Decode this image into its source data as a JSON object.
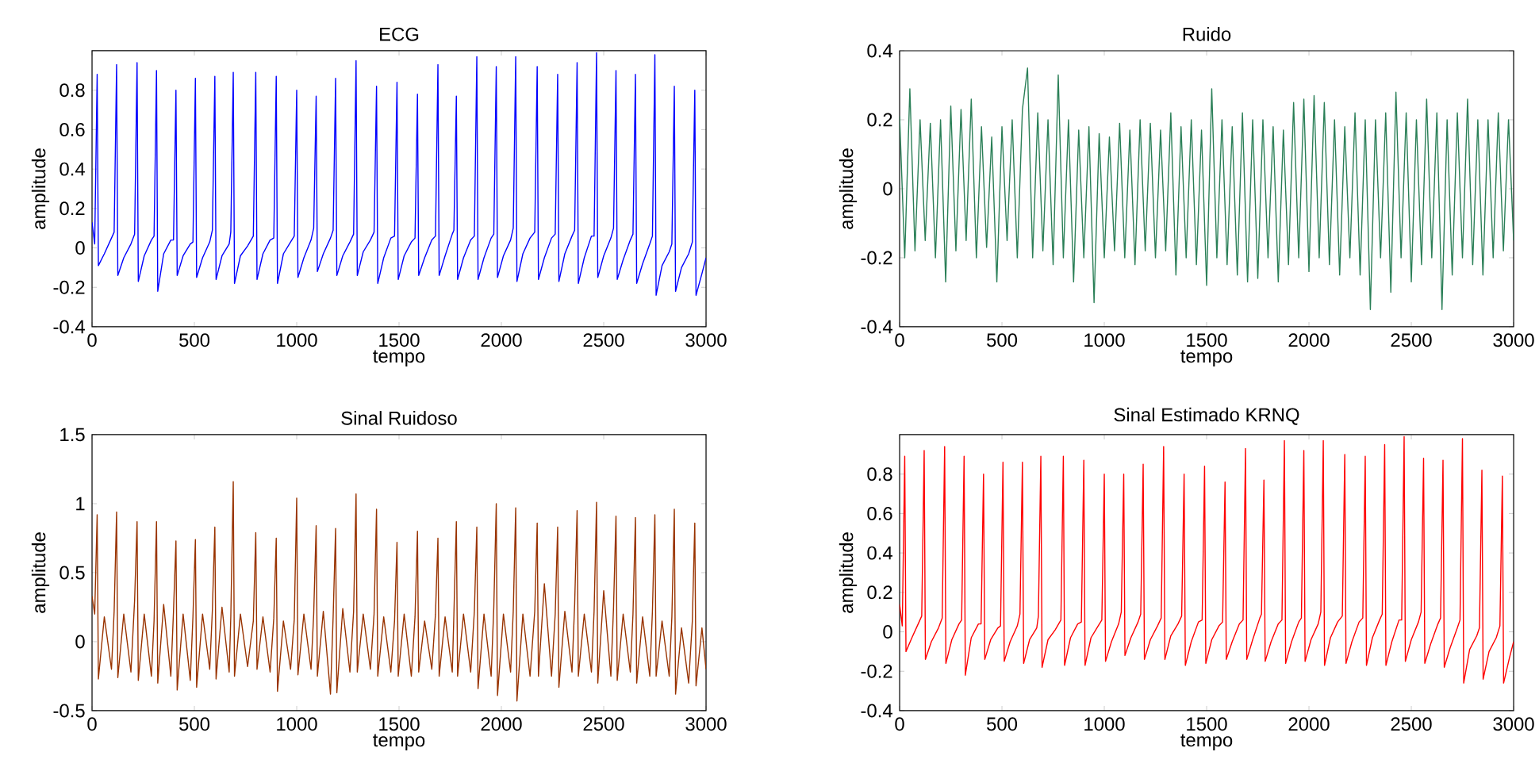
{
  "chart_data": [
    {
      "type": "line",
      "title": "ECG",
      "xlabel": "tempo",
      "ylabel": "amplitude",
      "color": "#0000ff",
      "xlim": [
        0,
        3000
      ],
      "ylim": [
        -0.4,
        1
      ],
      "xticks": [
        0,
        500,
        1000,
        1500,
        2000,
        2500,
        3000
      ],
      "yticks": [
        -0.4,
        -0.2,
        0,
        0.2,
        0.4,
        0.6,
        0.8
      ],
      "x": [
        0,
        13,
        25,
        31,
        60,
        95,
        108,
        120,
        126,
        155,
        190,
        208,
        220,
        226,
        255,
        290,
        303,
        315,
        321,
        350,
        385,
        398,
        410,
        416,
        445,
        480,
        493,
        505,
        511,
        540,
        575,
        588,
        600,
        606,
        635,
        670,
        678,
        690,
        696,
        725,
        760,
        788,
        800,
        806,
        835,
        870,
        888,
        900,
        906,
        935,
        970,
        988,
        1000,
        1006,
        1035,
        1070,
        1083,
        1095,
        1101,
        1130,
        1165,
        1178,
        1190,
        1196,
        1225,
        1260,
        1278,
        1290,
        1296,
        1325,
        1360,
        1378,
        1390,
        1396,
        1425,
        1460,
        1478,
        1490,
        1496,
        1525,
        1560,
        1578,
        1590,
        1596,
        1625,
        1660,
        1678,
        1690,
        1696,
        1725,
        1760,
        1768,
        1780,
        1786,
        1815,
        1850,
        1868,
        1880,
        1886,
        1915,
        1950,
        1963,
        1975,
        1981,
        2010,
        2045,
        2058,
        2070,
        2076,
        2105,
        2140,
        2163,
        2175,
        2181,
        2210,
        2245,
        2263,
        2275,
        2281,
        2310,
        2345,
        2358,
        2370,
        2376,
        2405,
        2440,
        2453,
        2465,
        2471,
        2500,
        2535,
        2548,
        2560,
        2566,
        2595,
        2630,
        2643,
        2655,
        2661,
        2690,
        2725,
        2738,
        2750,
        2756,
        2785,
        2820,
        2833,
        2845,
        2851,
        2880,
        2915,
        2933,
        2945,
        2951,
        2980,
        3000
      ],
      "values": [
        0.13,
        0.02,
        0.88,
        -0.09,
        -0.03,
        0.05,
        0.08,
        0.93,
        -0.14,
        -0.05,
        0.02,
        0.07,
        0.94,
        -0.17,
        -0.04,
        0.04,
        0.06,
        0.9,
        -0.22,
        -0.03,
        0.04,
        0.04,
        0.8,
        -0.14,
        -0.04,
        0.02,
        0.03,
        0.86,
        -0.15,
        -0.05,
        0.03,
        0.09,
        0.87,
        -0.16,
        -0.04,
        0.02,
        0.08,
        0.89,
        -0.18,
        -0.04,
        0.01,
        0.06,
        0.89,
        -0.16,
        -0.03,
        0.04,
        0.05,
        0.87,
        -0.18,
        -0.03,
        0.03,
        0.06,
        0.8,
        -0.15,
        -0.05,
        0.04,
        0.1,
        0.77,
        -0.12,
        -0.03,
        0.05,
        0.09,
        0.86,
        -0.14,
        -0.04,
        0.03,
        0.07,
        0.95,
        -0.14,
        -0.02,
        0.04,
        0.08,
        0.82,
        -0.18,
        -0.05,
        0.05,
        0.06,
        0.84,
        -0.16,
        -0.04,
        0.03,
        0.05,
        0.78,
        -0.14,
        -0.05,
        0.04,
        0.06,
        0.93,
        -0.14,
        -0.04,
        0.07,
        0.09,
        0.77,
        -0.16,
        -0.05,
        0.04,
        0.06,
        0.97,
        -0.16,
        -0.05,
        0.05,
        0.07,
        0.92,
        -0.15,
        -0.04,
        0.04,
        0.1,
        0.97,
        -0.17,
        -0.03,
        0.05,
        0.08,
        0.92,
        -0.16,
        -0.05,
        0.05,
        0.07,
        0.88,
        -0.17,
        -0.03,
        0.06,
        0.09,
        0.94,
        -0.18,
        -0.05,
        0.06,
        0.06,
        0.99,
        -0.15,
        -0.04,
        0.05,
        0.1,
        0.9,
        -0.16,
        -0.06,
        0.04,
        0.07,
        0.88,
        -0.18,
        -0.08,
        0.02,
        0.06,
        0.98,
        -0.24,
        -0.09,
        -0.02,
        0.02,
        0.82,
        -0.22,
        -0.1,
        -0.03,
        0.03,
        0.8,
        -0.24,
        -0.13,
        -0.05
      ]
    },
    {
      "type": "line",
      "title": "Ruido",
      "xlabel": "tempo",
      "ylabel": "amplitude",
      "color": "#2a7f57",
      "xlim": [
        0,
        3000
      ],
      "ylim": [
        -0.4,
        0.4
      ],
      "xticks": [
        0,
        500,
        1000,
        1500,
        2000,
        2500,
        3000
      ],
      "yticks": [
        -0.4,
        -0.2,
        0,
        0.2,
        0.4
      ],
      "x": [
        0,
        25,
        50,
        75,
        100,
        125,
        150,
        175,
        200,
        225,
        250,
        275,
        300,
        325,
        350,
        375,
        400,
        425,
        450,
        475,
        500,
        525,
        550,
        575,
        600,
        625,
        650,
        675,
        700,
        725,
        750,
        775,
        800,
        825,
        850,
        875,
        900,
        925,
        950,
        975,
        1000,
        1025,
        1050,
        1075,
        1100,
        1125,
        1150,
        1175,
        1200,
        1225,
        1250,
        1275,
        1300,
        1325,
        1350,
        1375,
        1400,
        1425,
        1450,
        1475,
        1500,
        1525,
        1550,
        1575,
        1600,
        1625,
        1650,
        1675,
        1700,
        1725,
        1750,
        1775,
        1800,
        1825,
        1850,
        1875,
        1900,
        1925,
        1950,
        1975,
        2000,
        2025,
        2050,
        2075,
        2100,
        2125,
        2150,
        2175,
        2200,
        2225,
        2250,
        2275,
        2300,
        2325,
        2350,
        2375,
        2400,
        2425,
        2450,
        2475,
        2500,
        2525,
        2550,
        2575,
        2600,
        2625,
        2650,
        2675,
        2700,
        2725,
        2750,
        2775,
        2800,
        2825,
        2850,
        2875,
        2900,
        2925,
        2950,
        2975,
        3000
      ],
      "values": [
        0.21,
        -0.2,
        0.29,
        -0.18,
        0.2,
        -0.15,
        0.19,
        -0.2,
        0.2,
        -0.27,
        0.24,
        -0.18,
        0.23,
        -0.15,
        0.26,
        -0.2,
        0.18,
        -0.17,
        0.15,
        -0.27,
        0.18,
        -0.15,
        0.2,
        -0.2,
        0.23,
        0.35,
        -0.2,
        0.22,
        -0.18,
        0.2,
        -0.22,
        0.33,
        -0.2,
        0.2,
        -0.27,
        0.17,
        -0.2,
        0.18,
        -0.33,
        0.16,
        -0.2,
        0.15,
        -0.18,
        0.19,
        -0.2,
        0.17,
        -0.22,
        0.2,
        -0.18,
        0.19,
        -0.2,
        0.17,
        -0.18,
        0.22,
        -0.25,
        0.18,
        -0.2,
        0.2,
        -0.22,
        0.17,
        -0.28,
        0.29,
        -0.2,
        0.2,
        -0.22,
        0.18,
        -0.25,
        0.22,
        -0.27,
        0.2,
        -0.26,
        0.2,
        -0.2,
        0.18,
        -0.27,
        0.17,
        -0.22,
        0.25,
        -0.2,
        0.26,
        -0.24,
        0.27,
        -0.2,
        0.25,
        -0.22,
        0.2,
        -0.25,
        0.18,
        -0.2,
        0.22,
        -0.25,
        0.2,
        -0.35,
        0.2,
        -0.2,
        0.22,
        -0.3,
        0.28,
        -0.2,
        0.22,
        -0.27,
        0.2,
        -0.22,
        0.26,
        -0.2,
        0.22,
        -0.35,
        0.2,
        -0.25,
        0.22,
        -0.2,
        0.26,
        -0.22,
        0.2,
        -0.25,
        0.2,
        -0.2,
        0.22,
        -0.18,
        0.2,
        -0.15
      ]
    },
    {
      "type": "line",
      "title": "Sinal Ruidoso",
      "xlabel": "tempo",
      "ylabel": "amplitude",
      "color": "#993300",
      "xlim": [
        0,
        3000
      ],
      "ylim": [
        -0.5,
        1.5
      ],
      "xticks": [
        0,
        500,
        1000,
        1500,
        2000,
        2500,
        3000
      ],
      "yticks": [
        -0.5,
        0,
        0.5,
        1,
        1.5
      ],
      "x": [
        0,
        13,
        25,
        31,
        60,
        95,
        108,
        120,
        126,
        155,
        190,
        208,
        220,
        226,
        255,
        290,
        303,
        315,
        321,
        350,
        385,
        398,
        410,
        416,
        445,
        480,
        493,
        505,
        511,
        540,
        575,
        588,
        600,
        606,
        635,
        670,
        678,
        690,
        696,
        725,
        760,
        788,
        800,
        806,
        835,
        870,
        888,
        900,
        906,
        935,
        970,
        988,
        1000,
        1006,
        1035,
        1070,
        1083,
        1095,
        1101,
        1130,
        1165,
        1178,
        1190,
        1196,
        1225,
        1260,
        1278,
        1290,
        1296,
        1325,
        1360,
        1378,
        1390,
        1396,
        1425,
        1460,
        1478,
        1490,
        1496,
        1525,
        1560,
        1578,
        1590,
        1596,
        1625,
        1660,
        1678,
        1690,
        1696,
        1725,
        1760,
        1768,
        1780,
        1786,
        1815,
        1850,
        1868,
        1880,
        1886,
        1915,
        1950,
        1963,
        1975,
        1981,
        2010,
        2045,
        2058,
        2070,
        2076,
        2105,
        2140,
        2163,
        2175,
        2181,
        2210,
        2245,
        2263,
        2275,
        2281,
        2310,
        2345,
        2358,
        2370,
        2376,
        2405,
        2440,
        2453,
        2465,
        2471,
        2500,
        2535,
        2548,
        2560,
        2566,
        2595,
        2630,
        2643,
        2655,
        2661,
        2690,
        2725,
        2738,
        2750,
        2756,
        2785,
        2820,
        2833,
        2845,
        2851,
        2880,
        2915,
        2933,
        2945,
        2951,
        2980,
        3000
      ],
      "values": [
        0.33,
        0.2,
        0.92,
        -0.27,
        0.18,
        -0.2,
        0.22,
        0.94,
        -0.26,
        0.2,
        -0.22,
        0.3,
        0.87,
        -0.28,
        0.2,
        -0.25,
        0.15,
        0.87,
        -0.3,
        0.27,
        -0.25,
        0.22,
        0.73,
        -0.35,
        0.2,
        -0.28,
        0.18,
        0.74,
        -0.33,
        0.2,
        -0.2,
        0.23,
        0.83,
        -0.27,
        0.25,
        -0.22,
        0.18,
        1.16,
        -0.25,
        0.2,
        -0.18,
        0.15,
        0.79,
        -0.2,
        0.18,
        -0.22,
        0.17,
        0.75,
        -0.36,
        0.15,
        -0.2,
        0.16,
        1.04,
        -0.24,
        0.2,
        -0.2,
        0.2,
        0.84,
        -0.25,
        0.22,
        -0.38,
        0.18,
        0.82,
        -0.37,
        0.24,
        -0.22,
        0.22,
        1.07,
        -0.22,
        0.2,
        -0.2,
        0.2,
        0.96,
        -0.25,
        0.18,
        -0.22,
        0.15,
        0.72,
        -0.25,
        0.2,
        -0.25,
        0.18,
        0.8,
        -0.22,
        0.15,
        -0.2,
        0.2,
        0.75,
        -0.25,
        0.18,
        -0.22,
        0.2,
        0.87,
        -0.25,
        0.2,
        -0.22,
        0.22,
        0.83,
        -0.34,
        0.2,
        -0.25,
        0.25,
        1.0,
        -0.39,
        0.2,
        -0.22,
        0.22,
        0.97,
        -0.43,
        0.2,
        -0.25,
        0.22,
        0.86,
        -0.25,
        0.42,
        -0.25,
        0.2,
        0.83,
        -0.33,
        0.22,
        -0.22,
        0.27,
        0.95,
        -0.25,
        0.2,
        -0.22,
        0.22,
        1.01,
        -0.3,
        0.37,
        -0.25,
        0.25,
        0.91,
        -0.28,
        0.2,
        -0.22,
        0.2,
        0.9,
        -0.3,
        0.18,
        -0.25,
        0.22,
        0.92,
        -0.25,
        0.15,
        -0.25,
        0.18,
        0.96,
        -0.38,
        0.1,
        -0.3,
        0.15,
        0.86,
        -0.32,
        0.1,
        -0.2
      ]
    },
    {
      "type": "line",
      "title": "Sinal Estimado KRNQ",
      "xlabel": "tempo",
      "ylabel": "amplitude",
      "color": "#ff0000",
      "xlim": [
        0,
        3000
      ],
      "ylim": [
        -0.4,
        1
      ],
      "xticks": [
        0,
        500,
        1000,
        1500,
        2000,
        2500,
        3000
      ],
      "yticks": [
        -0.4,
        -0.2,
        0,
        0.2,
        0.4,
        0.6,
        0.8
      ],
      "x": [
        0,
        13,
        25,
        31,
        60,
        95,
        108,
        120,
        126,
        155,
        190,
        208,
        220,
        226,
        255,
        290,
        303,
        315,
        321,
        350,
        385,
        398,
        410,
        416,
        445,
        480,
        493,
        505,
        511,
        540,
        575,
        588,
        600,
        606,
        635,
        670,
        678,
        690,
        696,
        725,
        760,
        788,
        800,
        806,
        835,
        870,
        888,
        900,
        906,
        935,
        970,
        988,
        1000,
        1006,
        1035,
        1070,
        1083,
        1095,
        1101,
        1130,
        1165,
        1178,
        1190,
        1196,
        1225,
        1260,
        1278,
        1290,
        1296,
        1325,
        1360,
        1378,
        1390,
        1396,
        1425,
        1460,
        1478,
        1490,
        1496,
        1525,
        1560,
        1578,
        1590,
        1596,
        1625,
        1660,
        1678,
        1690,
        1696,
        1725,
        1760,
        1768,
        1780,
        1786,
        1815,
        1850,
        1868,
        1880,
        1886,
        1915,
        1950,
        1963,
        1975,
        1981,
        2010,
        2045,
        2058,
        2070,
        2076,
        2105,
        2140,
        2163,
        2175,
        2181,
        2210,
        2245,
        2263,
        2275,
        2281,
        2310,
        2345,
        2358,
        2370,
        2376,
        2405,
        2440,
        2453,
        2465,
        2471,
        2500,
        2535,
        2548,
        2560,
        2566,
        2595,
        2630,
        2643,
        2655,
        2661,
        2690,
        2725,
        2738,
        2750,
        2756,
        2785,
        2820,
        2833,
        2845,
        2851,
        2880,
        2915,
        2933,
        2945,
        2951,
        2980,
        3000
      ],
      "values": [
        0.14,
        0.03,
        0.89,
        -0.1,
        -0.03,
        0.05,
        0.08,
        0.92,
        -0.14,
        -0.05,
        0.02,
        0.07,
        0.94,
        -0.16,
        -0.04,
        0.04,
        0.06,
        0.89,
        -0.22,
        -0.03,
        0.04,
        0.04,
        0.8,
        -0.14,
        -0.04,
        0.02,
        0.03,
        0.86,
        -0.15,
        -0.05,
        0.03,
        0.09,
        0.86,
        -0.16,
        -0.04,
        0.02,
        0.08,
        0.89,
        -0.18,
        -0.04,
        0.01,
        0.06,
        0.89,
        -0.17,
        -0.03,
        0.04,
        0.05,
        0.87,
        -0.17,
        -0.03,
        0.03,
        0.06,
        0.8,
        -0.15,
        -0.05,
        0.04,
        0.1,
        0.8,
        -0.12,
        -0.03,
        0.05,
        0.09,
        0.85,
        -0.14,
        -0.04,
        0.03,
        0.07,
        0.94,
        -0.14,
        -0.02,
        0.04,
        0.08,
        0.8,
        -0.17,
        -0.05,
        0.05,
        0.06,
        0.84,
        -0.16,
        -0.04,
        0.03,
        0.05,
        0.76,
        -0.14,
        -0.05,
        0.04,
        0.06,
        0.93,
        -0.14,
        -0.04,
        0.07,
        0.09,
        0.77,
        -0.15,
        -0.05,
        0.04,
        0.06,
        0.97,
        -0.16,
        -0.05,
        0.05,
        0.07,
        0.92,
        -0.15,
        -0.04,
        0.04,
        0.1,
        0.97,
        -0.17,
        -0.03,
        0.05,
        0.08,
        0.9,
        -0.16,
        -0.05,
        0.05,
        0.07,
        0.89,
        -0.17,
        -0.03,
        0.06,
        0.09,
        0.95,
        -0.17,
        -0.05,
        0.06,
        0.06,
        0.99,
        -0.15,
        -0.04,
        0.05,
        0.1,
        0.88,
        -0.16,
        -0.06,
        0.04,
        0.07,
        0.87,
        -0.18,
        -0.08,
        0.02,
        0.06,
        0.98,
        -0.26,
        -0.09,
        -0.02,
        0.02,
        0.82,
        -0.24,
        -0.1,
        -0.03,
        0.03,
        0.79,
        -0.26,
        -0.13,
        -0.05
      ]
    }
  ]
}
